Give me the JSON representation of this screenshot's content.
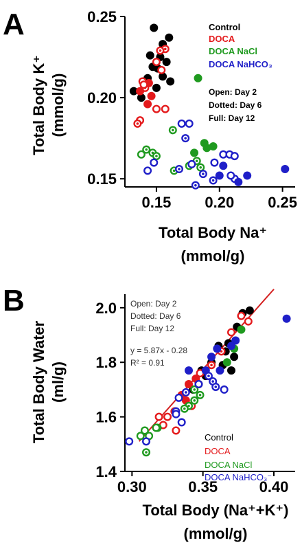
{
  "colors": {
    "Control": "#000000",
    "DOCA": "#e41a1c",
    "DOCA NaCl": "#1f9a1f",
    "DOCA NaHCO3": "#1f1fc8",
    "fit_line": "#d42020"
  },
  "chart_data": [
    {
      "panel": "A",
      "type": "scatter",
      "xlabel": [
        "Total Body Na⁺",
        "(mmol/g)"
      ],
      "ylabel": [
        "Total Body K⁺",
        "(mmol/g)"
      ],
      "xlim": [
        0.125,
        0.26
      ],
      "ylim": [
        0.145,
        0.25
      ],
      "xticks": [
        0.15,
        0.2,
        0.25
      ],
      "xtick_labels": [
        "0.15",
        "0.20",
        "0.25"
      ],
      "yticks": [
        0.15,
        0.2,
        0.25
      ],
      "ytick_labels": [
        "0.15",
        "0.20",
        "0.25"
      ],
      "grid": false,
      "legend_position": "top-right",
      "legend": [
        "Control",
        "DOCA",
        "DOCA NaCl",
        "DOCA NaHCO₃"
      ],
      "annotations": [
        "Open: Day 2",
        "Dotted: Day 6",
        "Full: Day 12"
      ],
      "series": [
        {
          "name": "Control",
          "points": [
            [
              0.148,
              0.243,
              "full"
            ],
            [
              0.16,
              0.237,
              "full"
            ],
            [
              0.155,
              0.233,
              "full"
            ],
            [
              0.145,
              0.226,
              "full"
            ],
            [
              0.158,
              0.222,
              "full"
            ],
            [
              0.151,
              0.218,
              "full"
            ],
            [
              0.143,
              0.212,
              "full"
            ],
            [
              0.155,
              0.213,
              "full"
            ],
            [
              0.161,
              0.21,
              "full"
            ],
            [
              0.132,
              0.204,
              "full"
            ],
            [
              0.138,
              0.2,
              "full"
            ],
            [
              0.15,
              0.206,
              "full"
            ],
            [
              0.147,
              0.219,
              "full"
            ],
            [
              0.153,
              0.225,
              "full"
            ]
          ]
        },
        {
          "name": "DOCA",
          "points": [
            [
              0.157,
              0.23,
              "dotted"
            ],
            [
              0.153,
              0.229,
              "dotted"
            ],
            [
              0.15,
              0.222,
              "open"
            ],
            [
              0.154,
              0.217,
              "open"
            ],
            [
              0.139,
              0.21,
              "open"
            ],
            [
              0.141,
              0.206,
              "dotted"
            ],
            [
              0.144,
              0.209,
              "full"
            ],
            [
              0.137,
              0.204,
              "full"
            ],
            [
              0.146,
              0.201,
              "full"
            ],
            [
              0.143,
              0.196,
              "full"
            ],
            [
              0.15,
              0.193,
              "open"
            ],
            [
              0.157,
              0.193,
              "open"
            ],
            [
              0.137,
              0.186,
              "open"
            ],
            [
              0.135,
              0.184,
              "dotted"
            ],
            [
              0.14,
              0.208,
              "open"
            ]
          ]
        },
        {
          "name": "DOCA NaCl",
          "points": [
            [
              0.183,
              0.212,
              "full"
            ],
            [
              0.163,
              0.18,
              "dotted"
            ],
            [
              0.188,
              0.172,
              "full"
            ],
            [
              0.195,
              0.17,
              "full"
            ],
            [
              0.19,
              0.169,
              "full"
            ],
            [
              0.18,
              0.166,
              "full"
            ],
            [
              0.142,
              0.168,
              "dotted"
            ],
            [
              0.147,
              0.166,
              "dotted"
            ],
            [
              0.138,
              0.165,
              "open"
            ],
            [
              0.182,
              0.161,
              "dotted"
            ],
            [
              0.176,
              0.158,
              "dotted"
            ],
            [
              0.164,
              0.155,
              "dotted"
            ],
            [
              0.185,
              0.157,
              "dotted"
            ],
            [
              0.15,
              0.164,
              "dotted"
            ]
          ]
        },
        {
          "name": "DOCA NaHCO3",
          "points": [
            [
              0.176,
              0.184,
              "open"
            ],
            [
              0.17,
              0.184,
              "open"
            ],
            [
              0.173,
              0.175,
              "dotted"
            ],
            [
              0.203,
              0.165,
              "open"
            ],
            [
              0.208,
              0.165,
              "open"
            ],
            [
              0.212,
              0.164,
              "open"
            ],
            [
              0.178,
              0.159,
              "open"
            ],
            [
              0.168,
              0.156,
              "dotted"
            ],
            [
              0.196,
              0.16,
              "open"
            ],
            [
              0.148,
              0.16,
              "open"
            ],
            [
              0.143,
              0.155,
              "open"
            ],
            [
              0.187,
              0.153,
              "dotted"
            ],
            [
              0.2,
              0.152,
              "full"
            ],
            [
              0.203,
              0.158,
              "full"
            ],
            [
              0.212,
              0.15,
              "open"
            ],
            [
              0.215,
              0.148,
              "full"
            ],
            [
              0.222,
              0.152,
              "full"
            ],
            [
              0.181,
              0.146,
              "dotted"
            ],
            [
              0.252,
              0.156,
              "full"
            ],
            [
              0.209,
              0.152,
              "open"
            ],
            [
              0.195,
              0.149,
              "dotted"
            ]
          ]
        }
      ]
    },
    {
      "panel": "B",
      "type": "scatter",
      "xlabel": [
        "Total Body (Na⁺+K⁺)",
        "(mmol/g)"
      ],
      "ylabel": [
        "Total Body Water",
        "(ml/g)"
      ],
      "xlim": [
        0.295,
        0.415
      ],
      "ylim": [
        1.4,
        2.05
      ],
      "xticks": [
        0.3,
        0.35,
        0.4
      ],
      "xtick_labels": [
        "0.30",
        "0.35",
        "0.40"
      ],
      "yticks": [
        1.4,
        1.6,
        1.8,
        2.0
      ],
      "ytick_labels": [
        "1.4",
        "1.6",
        "1.8",
        "2.0"
      ],
      "grid": false,
      "legend_position": "bottom-right",
      "legend": [
        "Control",
        "DOCA",
        "DOCA NaCl",
        "DOCA NaHCO₃⁻"
      ],
      "annotations": [
        "Open: Day 2",
        "Dotted: Day 6",
        "Full: Day 12"
      ],
      "fit": {
        "equation": "y = 5.87x - 0.28",
        "r2": "R² = 0.91",
        "slope": 5.87,
        "intercept": -0.28,
        "x_range": [
          0.305,
          0.4
        ]
      },
      "series": [
        {
          "name": "Control",
          "points": [
            [
              0.378,
              1.98,
              "full"
            ],
            [
              0.383,
              1.99,
              "full"
            ],
            [
              0.374,
              1.93,
              "full"
            ],
            [
              0.361,
              1.86,
              "full"
            ],
            [
              0.366,
              1.84,
              "full"
            ],
            [
              0.372,
              1.82,
              "full"
            ],
            [
              0.356,
              1.8,
              "full"
            ],
            [
              0.364,
              1.79,
              "full"
            ],
            [
              0.349,
              1.77,
              "full"
            ],
            [
              0.352,
              1.75,
              "full"
            ],
            [
              0.347,
              1.72,
              "full"
            ],
            [
              0.343,
              1.7,
              "full"
            ],
            [
              0.368,
              1.87,
              "full"
            ],
            [
              0.37,
              1.77,
              "full"
            ]
          ]
        },
        {
          "name": "DOCA",
          "points": [
            [
              0.37,
              1.91,
              "open"
            ],
            [
              0.377,
              1.97,
              "open"
            ],
            [
              0.382,
              1.95,
              "open"
            ],
            [
              0.363,
              1.84,
              "dotted"
            ],
            [
              0.356,
              1.79,
              "dotted"
            ],
            [
              0.348,
              1.76,
              "open"
            ],
            [
              0.34,
              1.72,
              "full"
            ],
            [
              0.345,
              1.74,
              "full"
            ],
            [
              0.335,
              1.68,
              "full"
            ],
            [
              0.338,
              1.66,
              "full"
            ],
            [
              0.33,
              1.62,
              "open"
            ],
            [
              0.325,
              1.6,
              "open"
            ],
            [
              0.319,
              1.6,
              "open"
            ],
            [
              0.322,
              1.57,
              "open"
            ],
            [
              0.331,
              1.55,
              "open"
            ],
            [
              0.342,
              1.64,
              "open"
            ]
          ]
        },
        {
          "name": "DOCA NaCl",
          "points": [
            [
              0.377,
              1.92,
              "full"
            ],
            [
              0.372,
              1.85,
              "full"
            ],
            [
              0.367,
              1.8,
              "full"
            ],
            [
              0.344,
              1.7,
              "dotted"
            ],
            [
              0.344,
              1.66,
              "dotted"
            ],
            [
              0.34,
              1.64,
              "dotted"
            ],
            [
              0.337,
              1.63,
              "dotted"
            ],
            [
              0.318,
              1.56,
              "dotted"
            ],
            [
              0.309,
              1.55,
              "open"
            ],
            [
              0.306,
              1.53,
              "open"
            ],
            [
              0.312,
              1.53,
              "open"
            ],
            [
              0.317,
              1.56,
              "open"
            ],
            [
              0.31,
              1.47,
              "dotted"
            ],
            [
              0.348,
              1.68,
              "dotted"
            ]
          ]
        },
        {
          "name": "DOCA NaHCO3",
          "points": [
            [
              0.409,
              1.96,
              "full"
            ],
            [
              0.373,
              1.88,
              "full"
            ],
            [
              0.37,
              1.86,
              "full"
            ],
            [
              0.36,
              1.85,
              "full"
            ],
            [
              0.356,
              1.82,
              "full"
            ],
            [
              0.352,
              1.77,
              "full"
            ],
            [
              0.34,
              1.77,
              "full"
            ],
            [
              0.354,
              1.75,
              "dotted"
            ],
            [
              0.357,
              1.73,
              "dotted"
            ],
            [
              0.359,
              1.71,
              "dotted"
            ],
            [
              0.365,
              1.7,
              "open"
            ],
            [
              0.333,
              1.67,
              "open"
            ],
            [
              0.331,
              1.62,
              "dotted"
            ],
            [
              0.335,
              1.58,
              "open"
            ],
            [
              0.331,
              1.61,
              "open"
            ],
            [
              0.298,
              1.51,
              "open"
            ],
            [
              0.31,
              1.51,
              "open"
            ],
            [
              0.347,
              1.72,
              "open"
            ],
            [
              0.338,
              1.69,
              "dotted"
            ],
            [
              0.362,
              1.77,
              "full"
            ]
          ]
        }
      ]
    }
  ]
}
